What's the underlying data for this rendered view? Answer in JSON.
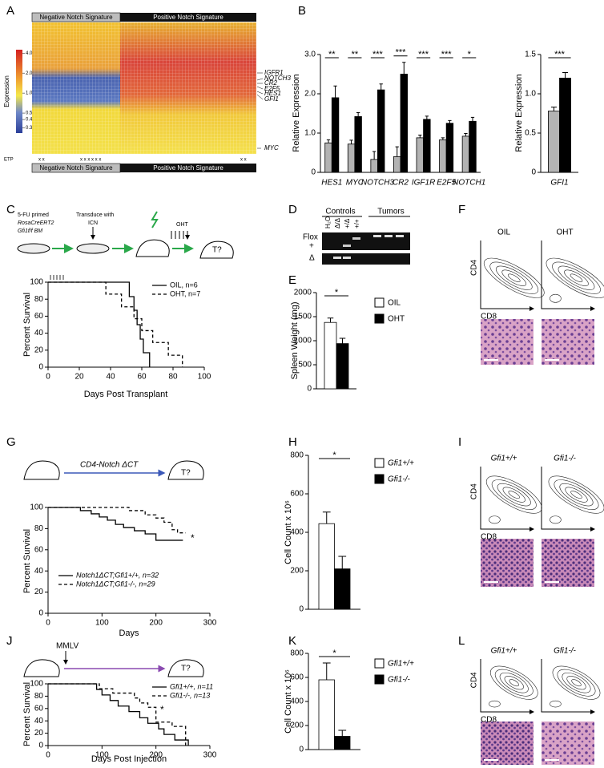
{
  "panel_labels": [
    "A",
    "B",
    "C",
    "D",
    "E",
    "F",
    "G",
    "H",
    "I",
    "J",
    "K",
    "L"
  ],
  "heatmap": {
    "top_labels": [
      "Negative Notch Signature",
      "Positive Notch Signature"
    ],
    "bottom_labels": [
      "Negative Notch Signature",
      "Positive Notch Signature"
    ],
    "colorbar_title": "Expression",
    "colorbar": {
      "log": true,
      "lim": [
        0.25,
        4.5
      ],
      "ticks": [
        {
          "value": 4,
          "label": "4.0"
        },
        {
          "value": 2,
          "label": "2.0"
        },
        {
          "value": 1,
          "label": "1.0"
        },
        0.5,
        0.4,
        0.3
      ]
    },
    "genes": [
      "IGFR1",
      "NOTCH3",
      "CR2",
      "E2F5",
      "HES1",
      "GFI1",
      "MYC"
    ],
    "row_label": "ETP",
    "marks": [
      "x x",
      "x x x x x x",
      "x x"
    ]
  },
  "schematic_c": {
    "cells": "5-FU primed",
    "genotype": "RosaCreERT2",
    "source": "Gfi1f/f BM",
    "step": "Transduce with",
    "vector": "ICN",
    "drug": "OHT",
    "outcome": "T?"
  },
  "gel": {
    "groups": [
      "Controls",
      "Tumors"
    ],
    "rows": [
      "Flox",
      "+",
      "Δ"
    ],
    "lanes": [
      "H₂O",
      "Δ/Δ",
      "+/Δ",
      "+/+"
    ]
  },
  "flow_f": {
    "conditions": [
      "OIL",
      "OHT"
    ],
    "y_axis": "CD4",
    "x_axis": "CD8"
  },
  "schematic_g": {
    "transgene": "CD4-Notch ΔCT",
    "outcome": "T?"
  },
  "flow_i": {
    "conditions": [
      "Gfi1+/+",
      "Gfi1-/-"
    ],
    "y_axis": "CD4",
    "x_axis": "CD8"
  },
  "schematic_j": {
    "virus": "MMLV",
    "outcome": "T?"
  },
  "flow_l": {
    "conditions": [
      "Gfi1+/+",
      "Gfi1-/-"
    ],
    "y_axis": "CD4",
    "x_axis": "CD8"
  },
  "chart_data": [
    {
      "type": "bar",
      "y_label": "Relative Expression",
      "categories": [
        "HES1",
        "MYC",
        "NOTCH3",
        "CR2",
        "IGF1R",
        "E2F5",
        "NOTCH1"
      ],
      "series": [
        {
          "color": "#b3b3b3",
          "values": [
            0.75,
            0.72,
            0.33,
            0.4,
            0.88,
            0.83,
            0.92
          ],
          "errors": [
            0.08,
            0.1,
            0.2,
            0.25,
            0.07,
            0.05,
            0.07
          ]
        },
        {
          "color": "#000000",
          "values": [
            1.9,
            1.42,
            2.1,
            2.5,
            1.35,
            1.25,
            1.3
          ],
          "errors": [
            0.3,
            0.1,
            0.15,
            0.3,
            0.08,
            0.07,
            0.1
          ]
        }
      ],
      "annotations": [
        "**",
        "**",
        "***",
        "***",
        "***",
        "***",
        "*"
      ],
      "ylim": [
        0,
        3
      ],
      "yticks": [
        0,
        {
          "value": 1,
          "label": "1.0"
        },
        {
          "value": 2,
          "label": "2.0"
        },
        {
          "value": 3,
          "label": "3.0"
        }
      ]
    },
    {
      "type": "bar",
      "y_label": "Relative Expression",
      "categories": [
        "GFI1"
      ],
      "series": [
        {
          "color": "#b3b3b3",
          "values": [
            0.78
          ],
          "errors": [
            0.05
          ]
        },
        {
          "color": "#000000",
          "values": [
            1.2
          ],
          "errors": [
            0.07
          ]
        }
      ],
      "annotations": [
        "***"
      ],
      "ylim": [
        0,
        1.5
      ],
      "yticks": [
        0,
        0.5,
        {
          "value": 1,
          "label": "1.0"
        },
        1.5
      ]
    },
    {
      "type": "line",
      "y_label": "Percent Survival",
      "x_label": "Days Post Transplant",
      "series": [
        {
          "name": "OIL, n=6",
          "color": "#000000",
          "dash": false,
          "x": [
            0,
            52,
            52,
            55,
            55,
            57,
            57,
            59,
            59,
            61,
            61,
            65,
            65
          ],
          "values": [
            100,
            100,
            83,
            83,
            67,
            67,
            50,
            50,
            33,
            33,
            17,
            17,
            0
          ]
        },
        {
          "name": "OHT, n=7",
          "color": "#000000",
          "dash": true,
          "x": [
            0,
            37,
            37,
            47,
            47,
            55,
            55,
            60,
            60,
            67,
            67,
            77,
            77,
            86,
            86
          ],
          "values": [
            100,
            100,
            86,
            86,
            71,
            71,
            57,
            57,
            43,
            43,
            29,
            29,
            14,
            14,
            0
          ]
        }
      ],
      "xlim": [
        0,
        100
      ],
      "xticks": [
        0,
        20,
        40,
        60,
        80,
        100
      ],
      "ylim": [
        0,
        100
      ],
      "yticks": [
        0,
        20,
        40,
        60,
        80,
        100
      ]
    },
    {
      "type": "bar",
      "y_label": "Spleen Weight (mg)",
      "categories": [
        null
      ],
      "series": [
        {
          "name": "OIL",
          "color": "#ffffff",
          "values": [
            1380
          ],
          "errors": [
            90
          ]
        },
        {
          "name": "OHT",
          "color": "#000000",
          "values": [
            940
          ],
          "errors": [
            110
          ]
        }
      ],
      "annotations": [
        "*"
      ],
      "ylim": [
        0,
        2000
      ],
      "yticks": [
        0,
        500,
        1000,
        1500,
        2000
      ]
    },
    {
      "type": "line",
      "y_label": "Percent Survival",
      "x_label": "Days",
      "annotation": "*",
      "series": [
        {
          "name": "Notch1ΔCT;Gfi1+/+, n=32",
          "color": "#000000",
          "dash": false,
          "x": [
            0,
            60,
            60,
            80,
            80,
            95,
            95,
            110,
            110,
            125,
            125,
            140,
            140,
            160,
            160,
            180,
            180,
            200,
            200,
            250
          ],
          "values": [
            100,
            100,
            97,
            97,
            94,
            94,
            91,
            91,
            88,
            88,
            84,
            84,
            81,
            81,
            78,
            78,
            75,
            75,
            69,
            69
          ]
        },
        {
          "name": "Notch1ΔCT;Gfi1-/-, n=29",
          "color": "#000000",
          "dash": true,
          "x": [
            0,
            150,
            150,
            180,
            180,
            200,
            200,
            215,
            215,
            230,
            230,
            240,
            240,
            255
          ],
          "values": [
            100,
            100,
            97,
            97,
            93,
            93,
            90,
            90,
            86,
            86,
            79,
            79,
            76,
            76
          ]
        }
      ],
      "xlim": [
        0,
        300
      ],
      "xticks": [
        0,
        100,
        200,
        300
      ],
      "ylim": [
        0,
        100
      ],
      "yticks": [
        0,
        20,
        40,
        60,
        80,
        100
      ]
    },
    {
      "type": "bar",
      "y_label": "Cell Count x 10⁶",
      "categories": [
        null
      ],
      "series": [
        {
          "name": "Gfi1+/+",
          "color": "#ffffff",
          "values": [
            445
          ],
          "errors": [
            60
          ]
        },
        {
          "name": "Gfi1-/-",
          "color": "#000000",
          "values": [
            210
          ],
          "errors": [
            65
          ]
        }
      ],
      "annotations": [
        "*"
      ],
      "ylim": [
        0,
        800
      ],
      "yticks": [
        0,
        200,
        400,
        600,
        800
      ]
    },
    {
      "type": "line",
      "y_label": "Percent Survival",
      "x_label": "Days Post Injection",
      "annotation": "*",
      "series": [
        {
          "name": "Gfi1+/+, n=11",
          "color": "#000000",
          "dash": false,
          "x": [
            0,
            90,
            90,
            100,
            100,
            115,
            115,
            130,
            130,
            150,
            150,
            170,
            170,
            185,
            185,
            205,
            205,
            215,
            215,
            235,
            235,
            260,
            260
          ],
          "values": [
            100,
            100,
            91,
            91,
            82,
            82,
            73,
            73,
            64,
            64,
            55,
            55,
            45,
            45,
            36,
            36,
            27,
            27,
            18,
            18,
            9,
            9,
            0
          ]
        },
        {
          "name": "Gfi1-/-, n=13",
          "color": "#000000",
          "dash": true,
          "x": [
            0,
            95,
            95,
            120,
            120,
            160,
            160,
            170,
            170,
            185,
            185,
            200,
            200,
            230,
            230,
            255,
            255
          ],
          "values": [
            100,
            100,
            92,
            92,
            85,
            85,
            77,
            77,
            69,
            69,
            62,
            62,
            38,
            38,
            31,
            31,
            0
          ]
        }
      ],
      "xlim": [
        0,
        300
      ],
      "xticks": [
        0,
        100,
        200,
        300
      ],
      "ylim": [
        0,
        100
      ],
      "yticks": [
        0,
        20,
        40,
        60,
        80,
        100
      ]
    },
    {
      "type": "bar",
      "y_label": "Cell Count x 10⁶",
      "categories": [
        null
      ],
      "series": [
        {
          "name": "Gfi1+/+",
          "color": "#ffffff",
          "values": [
            580
          ],
          "errors": [
            140
          ]
        },
        {
          "name": "Gfi1-/-",
          "color": "#000000",
          "values": [
            110
          ],
          "errors": [
            50
          ]
        }
      ],
      "annotations": [
        "*"
      ],
      "ylim": [
        0,
        800
      ],
      "yticks": [
        0,
        200,
        400,
        600,
        800
      ]
    }
  ]
}
